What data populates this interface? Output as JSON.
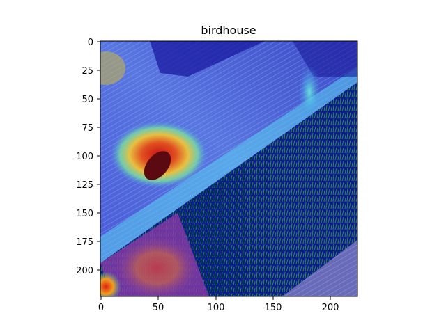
{
  "figure": {
    "title": "birdhouse",
    "y_ticks": [
      "0",
      "25",
      "50",
      "75",
      "100",
      "125",
      "150",
      "175",
      "200"
    ],
    "x_ticks": [
      "0",
      "50",
      "100",
      "150",
      "200"
    ]
  },
  "image": {
    "description_visible": "Gradient-weighted class activation heatmap overlaid on a photo of wooden planks, a dark oval knot hole, and grass in the lower right.",
    "colormap": "jet",
    "hotspot_color": "#d62020",
    "cold_color": "#2a2ac8",
    "grass_color": "#1e7a3a"
  }
}
